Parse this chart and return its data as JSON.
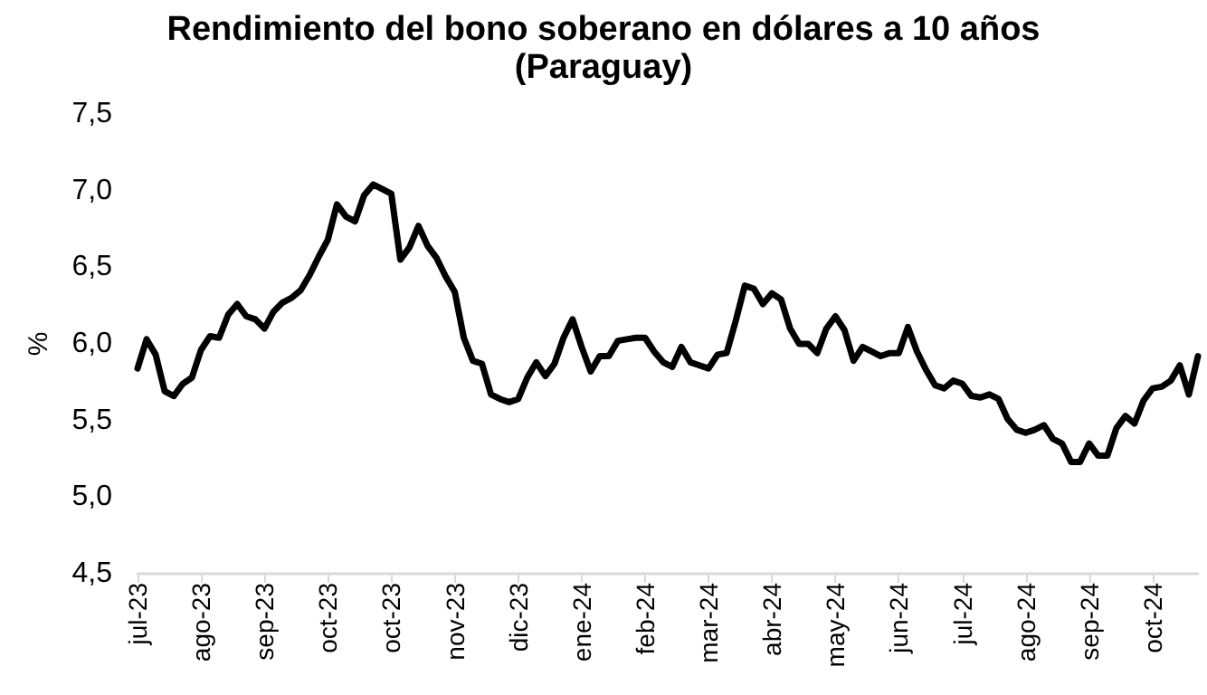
{
  "chart_data": {
    "type": "line",
    "title": "Rendimiento del bono soberano en dólares a 10 años",
    "subtitle": "(Paraguay)",
    "ylabel": "%",
    "categories": [
      "jul-23",
      null,
      null,
      null,
      null,
      null,
      null,
      "ago-23",
      null,
      null,
      null,
      null,
      null,
      null,
      "sep-23",
      null,
      null,
      null,
      null,
      null,
      null,
      "oct-23",
      null,
      null,
      null,
      null,
      null,
      null,
      "oct-23",
      null,
      null,
      null,
      null,
      null,
      null,
      "nov-23",
      null,
      null,
      null,
      null,
      null,
      null,
      "dic-23",
      null,
      null,
      null,
      null,
      null,
      null,
      "ene-24",
      null,
      null,
      null,
      null,
      null,
      null,
      "feb-24",
      null,
      null,
      null,
      null,
      null,
      null,
      "mar-24",
      null,
      null,
      null,
      null,
      null,
      null,
      "abr-24",
      null,
      null,
      null,
      null,
      null,
      null,
      "may-24",
      null,
      null,
      null,
      null,
      null,
      null,
      "jun-24",
      null,
      null,
      null,
      null,
      null,
      null,
      "jul-24",
      null,
      null,
      null,
      null,
      null,
      null,
      "ago-24",
      null,
      null,
      null,
      null,
      null,
      null,
      "sep-24",
      null,
      null,
      null,
      null,
      null,
      null,
      "oct-24",
      null,
      null,
      null,
      null,
      null
    ],
    "series": [
      {
        "color": "#000000",
        "values": [
          5.84,
          6.03,
          5.93,
          5.69,
          5.66,
          5.74,
          5.78,
          5.96,
          6.05,
          6.04,
          6.19,
          6.26,
          6.18,
          6.16,
          6.1,
          6.21,
          6.27,
          6.3,
          6.35,
          6.45,
          6.57,
          6.68,
          6.91,
          6.83,
          6.8,
          6.97,
          7.04,
          7.01,
          6.98,
          6.55,
          6.63,
          6.77,
          6.64,
          6.56,
          6.44,
          6.34,
          6.04,
          5.89,
          5.87,
          5.67,
          5.64,
          5.62,
          5.64,
          5.78,
          5.88,
          5.79,
          5.87,
          6.04,
          6.16,
          5.98,
          5.82,
          5.92,
          5.92,
          6.02,
          6.03,
          6.04,
          6.04,
          5.95,
          5.88,
          5.85,
          5.98,
          5.88,
          5.86,
          5.84,
          5.93,
          5.94,
          6.15,
          6.38,
          6.36,
          6.26,
          6.33,
          6.29,
          6.1,
          6.0,
          6.0,
          5.94,
          6.1,
          6.18,
          6.09,
          5.89,
          5.98,
          5.95,
          5.92,
          5.94,
          5.94,
          6.11,
          5.95,
          5.83,
          5.73,
          5.71,
          5.76,
          5.74,
          5.66,
          5.65,
          5.67,
          5.64,
          5.51,
          5.44,
          5.42,
          5.44,
          5.47,
          5.38,
          5.35,
          5.23,
          5.23,
          5.35,
          5.27,
          5.27,
          5.45,
          5.53,
          5.48,
          5.63,
          5.71,
          5.72,
          5.76,
          5.86,
          5.67,
          5.92
        ]
      }
    ],
    "ylim": [
      4.5,
      7.5
    ],
    "yticks": [
      {
        "value": 4.5,
        "label": "4,5"
      },
      {
        "value": 5,
        "label": "5,0"
      },
      {
        "value": 5.5,
        "label": "5,5"
      },
      {
        "value": 6,
        "label": "6,0"
      },
      {
        "value": 6.5,
        "label": "6,5"
      },
      {
        "value": 7,
        "label": "7,0"
      },
      {
        "value": 7.5,
        "label": "7,5"
      }
    ],
    "grid": false,
    "marker": "none",
    "line_style": "solid"
  }
}
